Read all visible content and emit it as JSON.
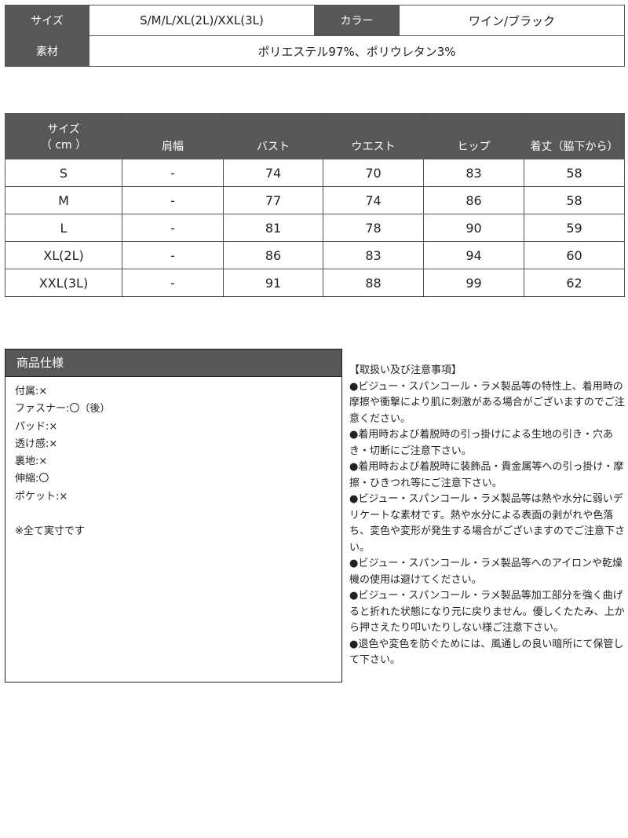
{
  "product_info": {
    "size_label": "サイズ",
    "size_value": "S/M/L/XL(2L)/XXL(3L)",
    "color_label": "カラー",
    "color_value": "ワイン/ブラック",
    "material_label": "素材",
    "material_value": "ポリエステル97%、ポリウレタン3%"
  },
  "size_table": {
    "headers": [
      "サイズ\n（ cm ）",
      "肩幅",
      "バスト",
      "ウエスト",
      "ヒップ",
      "着丈（脇下から）"
    ],
    "rows": [
      [
        "S",
        "-",
        "74",
        "70",
        "83",
        "58"
      ],
      [
        "M",
        "-",
        "77",
        "74",
        "86",
        "58"
      ],
      [
        "L",
        "-",
        "81",
        "78",
        "90",
        "59"
      ],
      [
        "XL(2L)",
        "-",
        "86",
        "83",
        "94",
        "60"
      ],
      [
        "XXL(3L)",
        "-",
        "91",
        "88",
        "99",
        "62"
      ]
    ]
  },
  "spec": {
    "title": "商品仕様",
    "items": [
      "付属:×",
      "ファスナー:〇（後）",
      "パッド:×",
      "透け感:×",
      "裏地:×",
      "伸縮:〇",
      "ポケット:×"
    ],
    "note": "※全て実寸です"
  },
  "notes": {
    "title": "【取扱い及び注意事項】",
    "items": [
      "●ビジュー・スパンコール・ラメ製品等の特性上、着用時の摩擦や衝撃により肌に刺激がある場合がございますのでご注意ください。",
      "●着用時および着脱時の引っ掛けによる生地の引き・穴あき・切断にご注意下さい。",
      "●着用時および着脱時に装飾品・貴金属等への引っ掛け・摩擦・ひきつれ等にご注意下さい。",
      "●ビジュー・スパンコール・ラメ製品等は熱や水分に弱いデリケートな素材です。熱や水分による表面の剥がれや色落ち、変色や変形が発生する場合がございますのでご注意下さい。",
      "●ビジュー・スパンコール・ラメ製品等へのアイロンや乾燥機の使用は避けてください。",
      "●ビジュー・スパンコール・ラメ製品等加工部分を強く曲げると折れた状態になり元に戻りません。優しくたたみ、上から押さえたり叩いたりしない様ご注意下さい。",
      "●退色や変色を防ぐためには、風通しの良い暗所にて保管して下さい。"
    ]
  },
  "colors": {
    "header_bg": "#575757"
  }
}
